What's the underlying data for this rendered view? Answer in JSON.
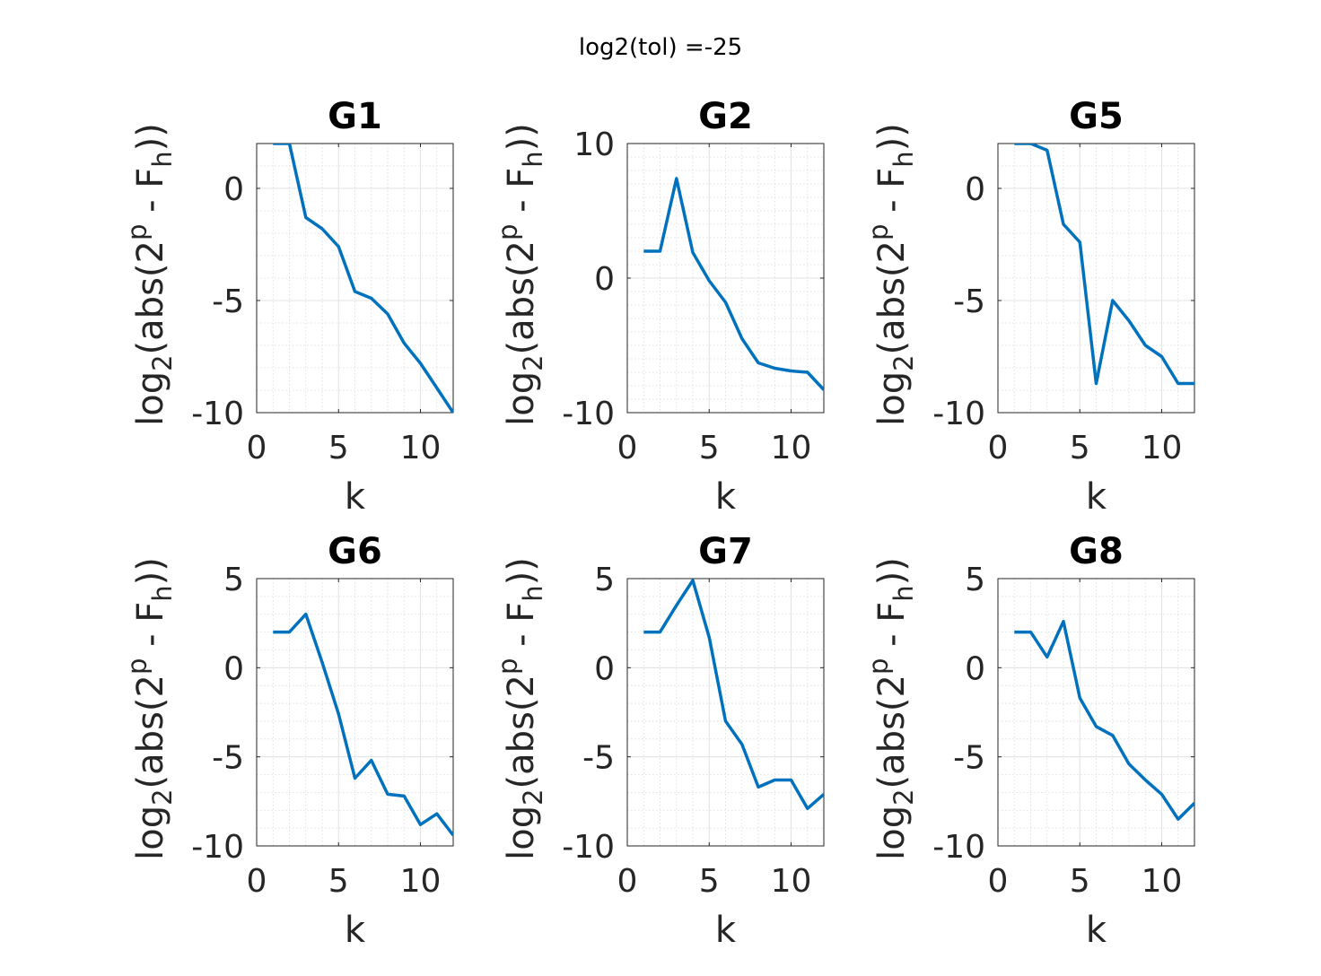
{
  "figure": {
    "suptitle": "log2(tol) =-25"
  },
  "chart_data": [
    {
      "type": "line",
      "title": "G1",
      "xlabel": "k",
      "ylabel": {
        "base": "log",
        "base_sub": "2",
        "pre": "(abs(2",
        "sup": "p",
        "mid": " - F",
        "sub": "h",
        "post": "))"
      },
      "xlim": [
        0,
        12
      ],
      "ylim": [
        -10,
        2
      ],
      "xticks": [
        0,
        5,
        10
      ],
      "yticks": [
        -10,
        -5,
        0
      ],
      "grid": true,
      "minor_grid": true,
      "x": [
        1,
        2,
        3,
        4,
        5,
        6,
        7,
        8,
        9,
        10,
        11,
        12
      ],
      "values": [
        2,
        2,
        -1.3,
        -1.8,
        -2.6,
        -4.6,
        -4.9,
        -5.6,
        -6.9,
        -7.8,
        -8.9,
        -10.0
      ]
    },
    {
      "type": "line",
      "title": "G2",
      "xlabel": "k",
      "ylabel": {
        "base": "log",
        "base_sub": "2",
        "pre": "(abs(2",
        "sup": "p",
        "mid": " - F",
        "sub": "h",
        "post": "))"
      },
      "xlim": [
        0,
        12
      ],
      "ylim": [
        -10,
        10
      ],
      "xticks": [
        0,
        5,
        10
      ],
      "yticks": [
        -10,
        0,
        10
      ],
      "grid": true,
      "minor_grid": true,
      "x": [
        1,
        2,
        3,
        4,
        5,
        6,
        7,
        8,
        9,
        10,
        11,
        12
      ],
      "values": [
        2,
        2,
        7.4,
        1.9,
        -0.2,
        -1.8,
        -4.5,
        -6.3,
        -6.7,
        -6.9,
        -7.0,
        -8.3
      ]
    },
    {
      "type": "line",
      "title": "G5",
      "xlabel": "k",
      "ylabel": {
        "base": "log",
        "base_sub": "2",
        "pre": "(abs(2",
        "sup": "p",
        "mid": " - F",
        "sub": "h",
        "post": "))"
      },
      "xlim": [
        0,
        12
      ],
      "ylim": [
        -10,
        2
      ],
      "xticks": [
        0,
        5,
        10
      ],
      "yticks": [
        -10,
        -5,
        0
      ],
      "grid": true,
      "minor_grid": true,
      "x": [
        1,
        2,
        3,
        4,
        5,
        6,
        7,
        8,
        9,
        10,
        11,
        12
      ],
      "values": [
        2,
        2,
        1.7,
        -1.6,
        -2.4,
        -8.7,
        -5.0,
        -5.9,
        -7.0,
        -7.5,
        -8.7,
        -8.7
      ]
    },
    {
      "type": "line",
      "title": "G6",
      "xlabel": "k",
      "ylabel": {
        "base": "log",
        "base_sub": "2",
        "pre": "(abs(2",
        "sup": "p",
        "mid": " - F",
        "sub": "h",
        "post": "))"
      },
      "xlim": [
        0,
        12
      ],
      "ylim": [
        -10,
        5
      ],
      "xticks": [
        0,
        5,
        10
      ],
      "yticks": [
        -10,
        -5,
        0,
        5
      ],
      "grid": true,
      "minor_grid": true,
      "x": [
        1,
        2,
        3,
        4,
        5,
        6,
        7,
        8,
        9,
        10,
        11,
        12
      ],
      "values": [
        2,
        2,
        3,
        0.3,
        -2.6,
        -6.2,
        -5.2,
        -7.1,
        -7.2,
        -8.8,
        -8.2,
        -9.4
      ]
    },
    {
      "type": "line",
      "title": "G7",
      "xlabel": "k",
      "ylabel": {
        "base": "log",
        "base_sub": "2",
        "pre": "(abs(2",
        "sup": "p",
        "mid": " - F",
        "sub": "h",
        "post": "))"
      },
      "xlim": [
        0,
        12
      ],
      "ylim": [
        -10,
        5
      ],
      "xticks": [
        0,
        5,
        10
      ],
      "yticks": [
        -10,
        -5,
        0,
        5
      ],
      "grid": true,
      "minor_grid": true,
      "x": [
        1,
        2,
        3,
        4,
        5,
        6,
        7,
        8,
        9,
        10,
        11,
        12
      ],
      "values": [
        2,
        2,
        3.5,
        4.9,
        1.7,
        -3.0,
        -4.3,
        -6.7,
        -6.3,
        -6.3,
        -7.9,
        -7.1
      ]
    },
    {
      "type": "line",
      "title": "G8",
      "xlabel": "k",
      "ylabel": {
        "base": "log",
        "base_sub": "2",
        "pre": "(abs(2",
        "sup": "p",
        "mid": " - F",
        "sub": "h",
        "post": "))"
      },
      "xlim": [
        0,
        12
      ],
      "ylim": [
        -10,
        5
      ],
      "xticks": [
        0,
        5,
        10
      ],
      "yticks": [
        -10,
        -5,
        0,
        5
      ],
      "grid": true,
      "minor_grid": true,
      "x": [
        1,
        2,
        3,
        4,
        5,
        6,
        7,
        8,
        9,
        10,
        11,
        12
      ],
      "values": [
        2,
        2,
        0.6,
        2.6,
        -1.7,
        -3.3,
        -3.8,
        -5.4,
        -6.3,
        -7.1,
        -8.5,
        -7.6
      ]
    }
  ]
}
